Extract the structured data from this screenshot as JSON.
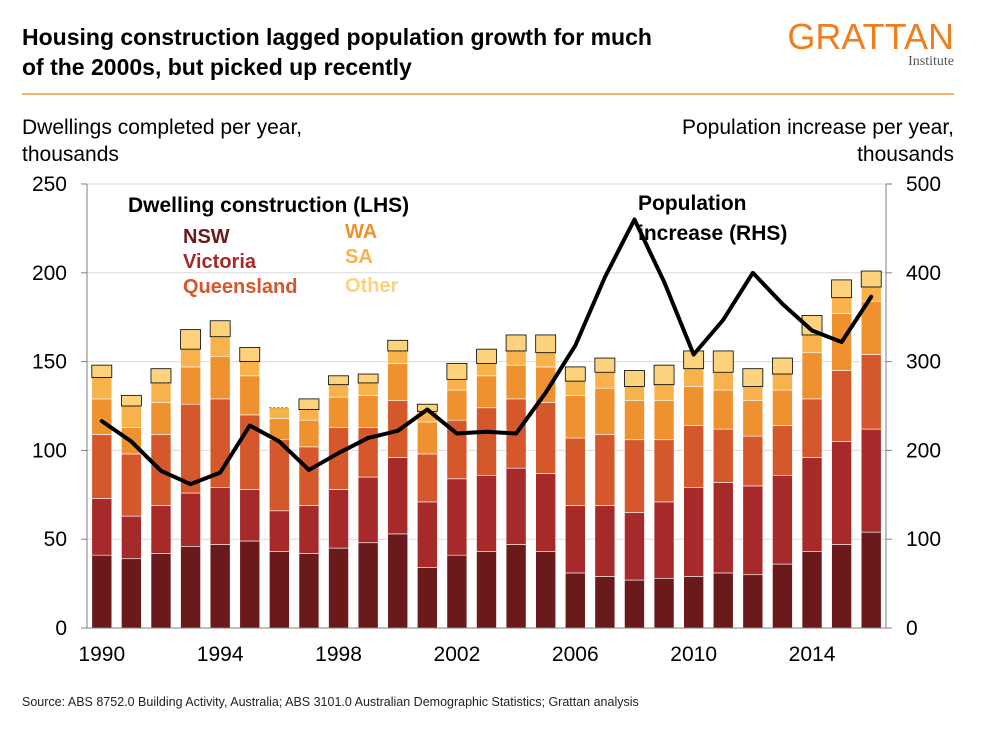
{
  "header": {
    "title_line1": "Housing construction lagged population growth for much",
    "title_line2": "of the 2000s, but picked up recently",
    "logo_main": "GRATTAN",
    "logo_sub": "Institute"
  },
  "left_axis_title_line1": "Dwellings completed per year,",
  "left_axis_title_line2": "thousands",
  "right_axis_title_line1": "Population increase per year,",
  "right_axis_title_line2": "thousands",
  "source": "Source: ABS 8752.0 Building Activity, Australia; ABS 3101.0 Australian Demographic Statistics; Grattan analysis",
  "colors": {
    "NSW": "#6b1a1c",
    "Victoria": "#a62a2a",
    "Queensland": "#d4582b",
    "WA": "#f0912f",
    "SA": "#f8b24b",
    "Other": "#fcd27d",
    "population_line": "#000000",
    "header_rule": "#f3b770",
    "logo": "#f07d1e"
  },
  "chart_data": {
    "type": "bar",
    "stacked": true,
    "x": [
      1990,
      1991,
      1992,
      1993,
      1994,
      1995,
      1996,
      1997,
      1998,
      1999,
      2000,
      2001,
      2002,
      2003,
      2004,
      2005,
      2006,
      2007,
      2008,
      2009,
      2010,
      2011,
      2012,
      2013,
      2014,
      2015,
      2016
    ],
    "x_tick_labels": [
      "1990",
      "1994",
      "1998",
      "2002",
      "2006",
      "2010",
      "2014"
    ],
    "y_left_ticks": [
      "0",
      "50",
      "100",
      "150",
      "200",
      "250"
    ],
    "y_right_ticks": [
      "0",
      "100",
      "200",
      "300",
      "400",
      "500"
    ],
    "ylim_left": [
      0,
      250
    ],
    "ylim_right": [
      0,
      500
    ],
    "legend_title": "Dwelling construction (LHS)",
    "line_label_line1": "Population",
    "line_label_line2": "increase (RHS)",
    "series": [
      {
        "name": "NSW",
        "axis": "left",
        "values": [
          41,
          39,
          42,
          46,
          47,
          49,
          43,
          42,
          45,
          48,
          53,
          34,
          41,
          43,
          47,
          43,
          31,
          29,
          27,
          28,
          29,
          31,
          30,
          36,
          43,
          47,
          54
        ]
      },
      {
        "name": "Victoria",
        "axis": "left",
        "values": [
          32,
          24,
          27,
          30,
          32,
          29,
          23,
          27,
          33,
          37,
          43,
          37,
          43,
          43,
          43,
          44,
          38,
          40,
          38,
          43,
          50,
          51,
          50,
          50,
          53,
          58,
          58
        ]
      },
      {
        "name": "Queensland",
        "axis": "left",
        "values": [
          36,
          35,
          40,
          50,
          50,
          42,
          40,
          33,
          35,
          28,
          32,
          27,
          33,
          38,
          39,
          40,
          38,
          40,
          41,
          35,
          35,
          30,
          28,
          28,
          33,
          40,
          42
        ]
      },
      {
        "name": "WA",
        "axis": "left",
        "values": [
          20,
          15,
          18,
          21,
          24,
          22,
          12,
          15,
          17,
          18,
          21,
          18,
          17,
          18,
          19,
          20,
          24,
          26,
          22,
          22,
          22,
          22,
          20,
          20,
          26,
          32,
          30
        ]
      },
      {
        "name": "SA",
        "axis": "left",
        "values": [
          12,
          12,
          11,
          10,
          11,
          8,
          6,
          6,
          7,
          7,
          7,
          6,
          6,
          7,
          8,
          8,
          8,
          9,
          8,
          9,
          10,
          10,
          8,
          9,
          10,
          9,
          8
        ]
      },
      {
        "name": "Other",
        "axis": "left",
        "values": [
          7,
          6,
          8,
          11,
          9,
          8,
          0,
          6,
          5,
          5,
          6,
          4,
          9,
          8,
          9,
          10,
          8,
          8,
          9,
          11,
          10,
          12,
          10,
          9,
          11,
          10,
          9
        ]
      },
      {
        "name": "Population increase",
        "axis": "right",
        "type": "line",
        "values": [
          233,
          210,
          177,
          162,
          175,
          228,
          210,
          178,
          197,
          214,
          222,
          246,
          219,
          221,
          219,
          265,
          318,
          395,
          460,
          390,
          308,
          347,
          400,
          365,
          335,
          322,
          373
        ]
      }
    ]
  }
}
